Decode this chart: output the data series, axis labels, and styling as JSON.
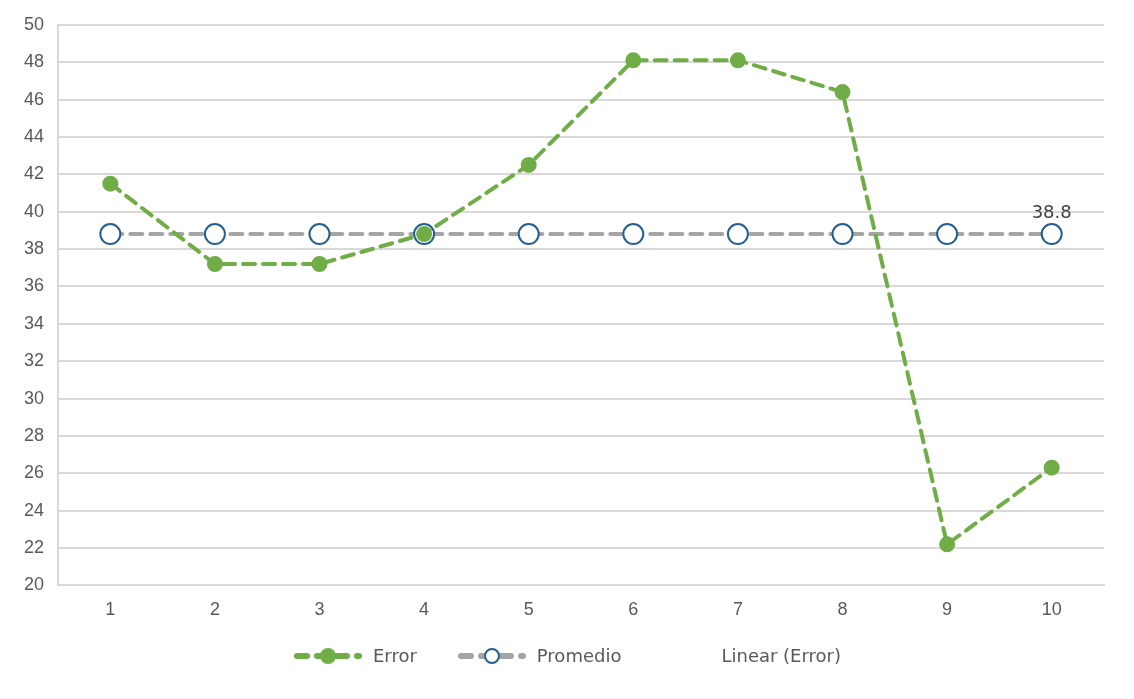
{
  "chart_data": {
    "type": "line",
    "categories": [
      "1",
      "2",
      "3",
      "4",
      "5",
      "6",
      "7",
      "8",
      "9",
      "10"
    ],
    "series": [
      {
        "name": "Error",
        "color": "#70ad47",
        "values": [
          41.5,
          37.2,
          37.2,
          38.8,
          42.5,
          48.1,
          48.1,
          46.4,
          22.2,
          26.3
        ]
      },
      {
        "name": "Promedio",
        "color": "#a5a5a5",
        "values": [
          38.8,
          38.8,
          38.8,
          38.8,
          38.8,
          38.8,
          38.8,
          38.8,
          38.8,
          38.8
        ],
        "value_labels": [
          null,
          null,
          null,
          null,
          null,
          null,
          null,
          null,
          null,
          "38.8"
        ]
      }
    ],
    "ylim": [
      20,
      50
    ],
    "yticks": [
      20,
      22,
      24,
      26,
      28,
      30,
      32,
      34,
      36,
      38,
      40,
      42,
      44,
      46,
      48,
      50
    ],
    "grid": "y",
    "legend": "bottom",
    "marker": "circle",
    "line_style": "dashed",
    "annotations": [
      "Linear (Error)"
    ]
  }
}
